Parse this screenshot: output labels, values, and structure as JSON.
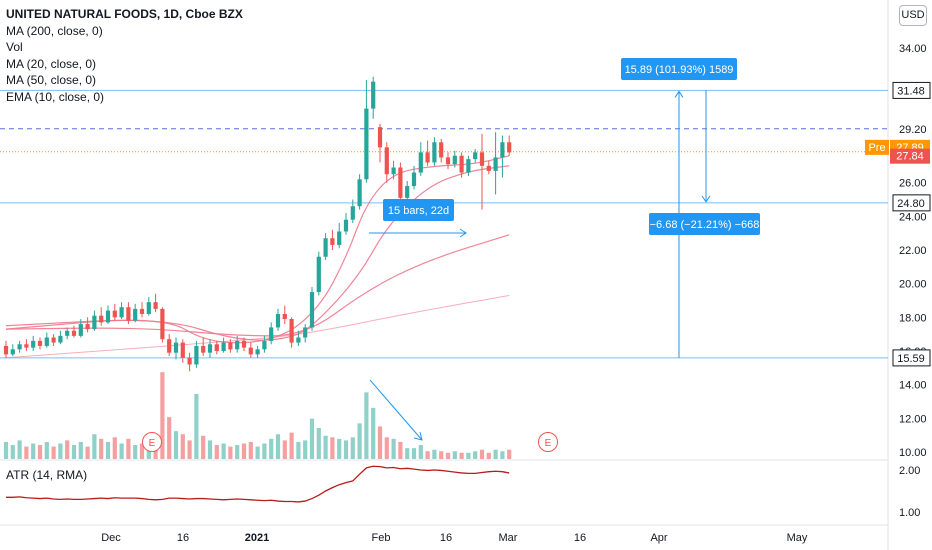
{
  "header": {
    "title": "UNITED NATURAL FOODS, 1D, Cboe BZX",
    "currency": "USD",
    "indicators": [
      "MA (200, close, 0)",
      "Vol",
      "MA (20, close, 0)",
      "MA (50, close, 0)",
      "EMA (10, close, 0)"
    ]
  },
  "atr_label": "ATR (14, RMA)",
  "colors": {
    "up": "#26a69a",
    "down": "#ef5350",
    "vol_up": "#8fd1c8",
    "vol_down": "#f5a0a0",
    "ma": "#f0788c",
    "hline": "#2196f3",
    "atr": "#b71c1c",
    "pre": "#ff9800"
  },
  "chart_data": [
    {
      "type": "candlestick",
      "title": "UNITED NATURAL FOODS, 1D, Cboe BZX",
      "y_ticks": [
        10,
        12,
        14,
        16,
        18,
        20,
        22,
        24,
        26,
        29.2,
        34
      ],
      "y_tick_labels": [
        "10.00",
        "12.00",
        "14.00",
        "16.00",
        "18.00",
        "20.00",
        "22.00",
        "24.00",
        "26.00",
        "29.20",
        "34.00"
      ],
      "x_tick_labels": [
        "Dec",
        "16",
        "2021",
        "Feb",
        "16",
        "Mar",
        "16",
        "Apr",
        "May"
      ],
      "ylim": [
        9.5,
        35.5
      ],
      "candles": [
        [
          16.3,
          15.8,
          16.6,
          15.6
        ],
        [
          15.8,
          16.1,
          16.4,
          15.7
        ],
        [
          16.1,
          16.4,
          16.6,
          15.9
        ],
        [
          16.4,
          16.2,
          16.7,
          16.0
        ],
        [
          16.2,
          16.6,
          16.9,
          16.0
        ],
        [
          16.6,
          16.3,
          16.8,
          16.1
        ],
        [
          16.3,
          16.8,
          17.1,
          16.2
        ],
        [
          16.8,
          16.5,
          17.0,
          16.3
        ],
        [
          16.5,
          16.9,
          17.2,
          16.4
        ],
        [
          16.9,
          17.2,
          17.4,
          16.7
        ],
        [
          17.2,
          16.9,
          17.5,
          16.8
        ],
        [
          16.9,
          17.6,
          17.9,
          16.8
        ],
        [
          17.6,
          17.3,
          18.0,
          17.1
        ],
        [
          17.3,
          18.1,
          18.4,
          17.2
        ],
        [
          18.1,
          17.7,
          18.6,
          17.5
        ],
        [
          17.7,
          18.4,
          18.7,
          17.6
        ],
        [
          18.4,
          18.0,
          18.8,
          17.8
        ],
        [
          18.0,
          18.6,
          18.9,
          17.9
        ],
        [
          18.6,
          17.8,
          18.9,
          17.6
        ],
        [
          17.8,
          18.5,
          18.8,
          17.7
        ],
        [
          18.5,
          18.2,
          18.9,
          18.0
        ],
        [
          18.2,
          18.9,
          19.2,
          18.1
        ],
        [
          18.9,
          18.5,
          19.4,
          18.3
        ],
        [
          18.5,
          16.7,
          18.6,
          16.5
        ],
        [
          16.7,
          15.9,
          17.0,
          15.7
        ],
        [
          15.9,
          16.5,
          16.8,
          15.5
        ],
        [
          16.5,
          15.6,
          16.7,
          15.3
        ],
        [
          15.6,
          15.2,
          15.9,
          14.8
        ],
        [
          15.2,
          16.3,
          16.6,
          15.0
        ],
        [
          16.3,
          15.9,
          16.8,
          15.7
        ],
        [
          15.9,
          16.4,
          16.7,
          15.6
        ],
        [
          16.4,
          16.0,
          16.6,
          15.8
        ],
        [
          16.0,
          16.5,
          16.8,
          15.9
        ],
        [
          16.5,
          16.1,
          16.7,
          15.9
        ],
        [
          16.1,
          16.6,
          16.9,
          15.9
        ],
        [
          16.6,
          16.2,
          16.8,
          16.0
        ],
        [
          16.2,
          15.8,
          16.5,
          15.6
        ],
        [
          15.8,
          16.1,
          16.3,
          15.6
        ],
        [
          16.1,
          16.6,
          16.9,
          15.9
        ],
        [
          16.6,
          17.4,
          17.7,
          16.4
        ],
        [
          17.4,
          18.2,
          18.5,
          17.2
        ],
        [
          18.2,
          17.9,
          18.7,
          17.6
        ],
        [
          17.9,
          16.5,
          18.0,
          16.2
        ],
        [
          16.5,
          16.8,
          17.2,
          16.3
        ],
        [
          16.8,
          17.4,
          17.6,
          16.5
        ],
        [
          17.4,
          19.5,
          19.8,
          17.2
        ],
        [
          19.5,
          21.6,
          21.9,
          19.3
        ],
        [
          21.6,
          22.7,
          23.0,
          21.4
        ],
        [
          22.7,
          22.3,
          23.2,
          22.0
        ],
        [
          22.3,
          23.1,
          23.6,
          22.1
        ],
        [
          23.1,
          23.8,
          24.2,
          22.9
        ],
        [
          23.8,
          24.6,
          25.0,
          23.6
        ],
        [
          24.6,
          26.2,
          26.5,
          24.4
        ],
        [
          26.2,
          30.4,
          32.1,
          26.0
        ],
        [
          30.4,
          32.0,
          32.3,
          29.8
        ],
        [
          29.3,
          28.1,
          29.5,
          27.2
        ],
        [
          28.1,
          26.5,
          28.4,
          26.0
        ],
        [
          26.5,
          26.9,
          27.3,
          26.2
        ],
        [
          26.9,
          25.1,
          27.2,
          24.8
        ],
        [
          25.1,
          25.8,
          26.1,
          24.8
        ],
        [
          25.8,
          26.6,
          27.0,
          25.6
        ],
        [
          26.6,
          27.8,
          28.4,
          26.4
        ],
        [
          27.8,
          27.2,
          28.5,
          27.0
        ],
        [
          27.2,
          28.4,
          28.7,
          27.0
        ],
        [
          28.4,
          27.5,
          28.6,
          27.2
        ],
        [
          27.5,
          27.1,
          27.8,
          26.8
        ],
        [
          27.1,
          27.6,
          27.9,
          26.9
        ],
        [
          27.6,
          26.6,
          27.8,
          26.3
        ],
        [
          26.6,
          27.4,
          27.6,
          26.4
        ],
        [
          27.4,
          27.8,
          28.0,
          27.2
        ],
        [
          27.8,
          27.0,
          28.9,
          24.4
        ],
        [
          27.0,
          26.7,
          27.3,
          26.5
        ],
        [
          26.7,
          27.5,
          29.0,
          25.3
        ],
        [
          27.5,
          28.4,
          28.8,
          26.3
        ],
        [
          28.4,
          27.8,
          28.8,
          27.6
        ]
      ],
      "volume": [
        [
          1.1,
          1
        ],
        [
          0.9,
          1
        ],
        [
          1.2,
          1
        ],
        [
          0.8,
          0
        ],
        [
          1.0,
          1
        ],
        [
          0.9,
          0
        ],
        [
          1.1,
          1
        ],
        [
          0.8,
          0
        ],
        [
          1.0,
          1
        ],
        [
          1.2,
          0
        ],
        [
          0.9,
          1
        ],
        [
          1.1,
          1
        ],
        [
          0.8,
          0
        ],
        [
          1.6,
          1
        ],
        [
          1.3,
          0
        ],
        [
          1.1,
          1
        ],
        [
          1.4,
          0
        ],
        [
          1.0,
          1
        ],
        [
          1.3,
          0
        ],
        [
          0.9,
          1
        ],
        [
          1.0,
          0
        ],
        [
          1.1,
          1
        ],
        [
          1.2,
          0
        ],
        [
          5.6,
          0
        ],
        [
          2.7,
          0
        ],
        [
          1.8,
          1
        ],
        [
          1.6,
          0
        ],
        [
          1.2,
          0
        ],
        [
          4.2,
          1
        ],
        [
          1.5,
          0
        ],
        [
          1.2,
          1
        ],
        [
          0.9,
          0
        ],
        [
          1.0,
          1
        ],
        [
          0.8,
          0
        ],
        [
          0.9,
          1
        ],
        [
          1.0,
          0
        ],
        [
          1.1,
          0
        ],
        [
          0.8,
          1
        ],
        [
          1.0,
          1
        ],
        [
          1.3,
          1
        ],
        [
          1.6,
          1
        ],
        [
          1.2,
          0
        ],
        [
          1.7,
          0
        ],
        [
          1.1,
          1
        ],
        [
          1.2,
          1
        ],
        [
          2.6,
          1
        ],
        [
          2.0,
          1
        ],
        [
          1.5,
          1
        ],
        [
          1.4,
          0
        ],
        [
          1.3,
          1
        ],
        [
          1.2,
          1
        ],
        [
          1.4,
          1
        ],
        [
          2.3,
          1
        ],
        [
          4.3,
          1
        ],
        [
          3.3,
          1
        ],
        [
          2.1,
          0
        ],
        [
          1.4,
          0
        ],
        [
          1.3,
          1
        ],
        [
          1.1,
          0
        ],
        [
          0.7,
          1
        ],
        [
          0.7,
          1
        ],
        [
          0.9,
          1
        ],
        [
          0.5,
          0
        ],
        [
          0.6,
          1
        ],
        [
          0.5,
          0
        ],
        [
          0.4,
          0
        ],
        [
          0.5,
          1
        ],
        [
          0.4,
          0
        ],
        [
          0.4,
          1
        ],
        [
          0.5,
          1
        ],
        [
          0.6,
          0
        ],
        [
          0.4,
          0
        ],
        [
          0.6,
          1
        ],
        [
          0.5,
          1
        ],
        [
          0.6,
          0
        ]
      ],
      "ma_lines": [
        {
          "name": "EMA (10, close, 0)",
          "values": [
            [
              0,
              17.3
            ],
            [
              23,
              18.1
            ],
            [
              30,
              16.4
            ],
            [
              40,
              16.6
            ],
            [
              46,
              18.5
            ],
            [
              50,
              21.5
            ],
            [
              53,
              24.8
            ],
            [
              57,
              26.6
            ],
            [
              63,
              27.0
            ],
            [
              69,
              27.1
            ],
            [
              74,
              27.6
            ]
          ]
        },
        {
          "name": "MA (20, close, 0)",
          "values": [
            [
              0,
              17.5
            ],
            [
              23,
              18.0
            ],
            [
              34,
              16.6
            ],
            [
              42,
              16.7
            ],
            [
              46,
              17.8
            ],
            [
              52,
              20.5
            ],
            [
              56,
              23.4
            ],
            [
              62,
              25.8
            ],
            [
              68,
              26.7
            ],
            [
              74,
              27.0
            ]
          ]
        },
        {
          "name": "MA (50, close, 0)",
          "values": [
            [
              0,
              17.3
            ],
            [
              20,
              17.4
            ],
            [
              34,
              16.9
            ],
            [
              44,
              16.9
            ],
            [
              53,
              19.6
            ],
            [
              62,
              21.4
            ],
            [
              74,
              22.9
            ]
          ]
        },
        {
          "name": "MA (200, close, 0)",
          "values": [
            [
              0,
              15.6
            ],
            [
              34,
              16.6
            ],
            [
              44,
              17.0
            ],
            [
              60,
              18.3
            ],
            [
              74,
              19.3
            ]
          ]
        }
      ],
      "atr": [
        1.35,
        1.35,
        1.36,
        1.34,
        1.33,
        1.32,
        1.33,
        1.31,
        1.3,
        1.31,
        1.3,
        1.3,
        1.31,
        1.32,
        1.33,
        1.32,
        1.34,
        1.33,
        1.33,
        1.33,
        1.32,
        1.3,
        1.29,
        1.3,
        1.33,
        1.33,
        1.32,
        1.31,
        1.32,
        1.32,
        1.31,
        1.3,
        1.29,
        1.3,
        1.31,
        1.3,
        1.29,
        1.28,
        1.27,
        1.28,
        1.26,
        1.25,
        1.25,
        1.24,
        1.26,
        1.32,
        1.4,
        1.5,
        1.58,
        1.65,
        1.7,
        1.74,
        1.9,
        2.05,
        2.09,
        2.08,
        2.05,
        2.06,
        2.03,
        2.04,
        2.02,
        2.0,
        1.99,
        2.0,
        1.99,
        1.97,
        1.95,
        1.93,
        1.92,
        1.92,
        1.94,
        1.96,
        1.97,
        1.96,
        1.93
      ],
      "atr_ticks": [
        1.0,
        2.0
      ],
      "atr_tick_labels": [
        "1.00",
        "2.00"
      ],
      "atr_ylim": [
        0.8,
        2.15
      ],
      "price_levels": [
        {
          "value": 31.48,
          "label": "31.48"
        },
        {
          "value": 24.8,
          "label": "24.80"
        },
        {
          "value": 15.59,
          "label": "15.59"
        }
      ],
      "dashed_level": {
        "value": 29.2,
        "label": "29.20"
      },
      "pre_level": {
        "value": 27.89,
        "label": "27.89",
        "tag": "Pre"
      },
      "last_level": {
        "value": 27.84,
        "label": "27.84"
      },
      "annotations": [
        {
          "text": "15.89 (101.93%) 1589"
        },
        {
          "text": "15 bars, 22d"
        },
        {
          "text": "−6.68 (−21.21%) −668"
        }
      ],
      "earnings_markers": [
        "E",
        "E"
      ]
    }
  ]
}
